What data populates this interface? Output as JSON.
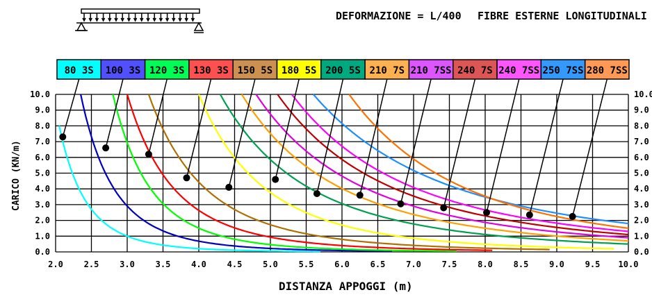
{
  "header": {
    "deformation": "DEFORMAZIONE = L/400",
    "fibers": "FIBRE ESTERNE LONGITUDINALI"
  },
  "chart_data": {
    "type": "line",
    "xlabel": "DISTANZA APPOGGI (m)",
    "ylabel": "CARICO (KN/m)",
    "xlim": [
      2.0,
      10.0
    ],
    "ylim": [
      0.0,
      10.0
    ],
    "x_ticks": [
      "2.0",
      "2.5",
      "3.0",
      "3.5",
      "4.0",
      "4.5",
      "5.0",
      "5.5",
      "6.0",
      "6.5",
      "7.0",
      "7.5",
      "8.0",
      "8.5",
      "9.0",
      "9.5",
      "10.0"
    ],
    "y_ticks": [
      "0.0",
      "1.0",
      "2.0",
      "3.0",
      "4.0",
      "5.0",
      "6.0",
      "7.0",
      "8.0",
      "9.0",
      "10.0"
    ],
    "grid": true,
    "legend_placement": "top",
    "series": [
      {
        "name": "80 3S",
        "color": "#00ffff",
        "exp": 3,
        "points": [
          [
            2.05,
            8.0
          ],
          [
            5.7,
            0.03
          ]
        ],
        "marker": [
          2.1,
          7.3
        ]
      },
      {
        "name": "100 3S",
        "color": "#0000c0",
        "exp": 3,
        "points": [
          [
            2.35,
            10.0
          ],
          [
            6.7,
            0.05
          ]
        ],
        "marker": [
          2.7,
          6.6
        ]
      },
      {
        "name": "120 3S",
        "color": "#00ff00",
        "exp": 3,
        "points": [
          [
            2.8,
            10.0
          ],
          [
            7.6,
            0.05
          ]
        ],
        "marker": [
          3.3,
          6.2
        ]
      },
      {
        "name": "130 3S",
        "color": "#ff0000",
        "exp": 3,
        "points": [
          [
            3.0,
            10.0
          ],
          [
            8.1,
            0.1
          ]
        ],
        "marker": [
          3.83,
          4.7
        ]
      },
      {
        "name": "150 5S",
        "color": "#b07000",
        "exp": 3,
        "points": [
          [
            3.3,
            10.0
          ],
          [
            8.9,
            0.15
          ]
        ],
        "marker": [
          4.42,
          4.1
        ]
      },
      {
        "name": "180 5S",
        "color": "#ffff00",
        "exp": 3,
        "points": [
          [
            4.0,
            10.0
          ],
          [
            9.8,
            0.2
          ]
        ],
        "marker": [
          5.07,
          4.6
        ]
      },
      {
        "name": "200 5S",
        "color": "#00a050",
        "exp": 3,
        "points": [
          [
            4.3,
            10.0
          ],
          [
            10.0,
            0.5
          ]
        ],
        "marker": [
          5.65,
          3.7
        ]
      },
      {
        "name": "210 7S",
        "color": "#ffa000",
        "exp": 3,
        "points": [
          [
            4.6,
            10.0
          ],
          [
            10.0,
            0.7
          ]
        ],
        "marker": [
          6.25,
          3.6
        ]
      },
      {
        "name": "210 7SS",
        "color": "#e000e0",
        "exp": 3,
        "points": [
          [
            4.8,
            10.0
          ],
          [
            10.0,
            0.9
          ]
        ],
        "marker": [
          6.82,
          3.05
        ]
      },
      {
        "name": "240 7S",
        "color": "#c00000",
        "exp": 3,
        "points": [
          [
            5.1,
            10.0
          ],
          [
            10.0,
            1.1
          ]
        ],
        "marker": [
          7.42,
          2.8
        ]
      },
      {
        "name": "240 7SS",
        "color": "#ff00ff",
        "exp": 3,
        "points": [
          [
            5.3,
            10.0
          ],
          [
            10.0,
            1.3
          ]
        ],
        "marker": [
          8.02,
          2.5
        ]
      },
      {
        "name": "250 7SS",
        "color": "#1e8fff",
        "exp": 3,
        "points": [
          [
            5.6,
            10.0
          ],
          [
            10.0,
            1.8
          ]
        ],
        "marker": [
          8.62,
          2.35
        ]
      },
      {
        "name": "280 7SS",
        "color": "#ff7000",
        "exp": 3,
        "points": [
          [
            6.1,
            10.0
          ],
          [
            10.0,
            1.5
          ]
        ],
        "marker": [
          9.22,
          2.25
        ]
      }
    ],
    "legend_colors": [
      "#00ffff",
      "#5050ff",
      "#00ff55",
      "#ff5050",
      "#cc9050",
      "#ffff00",
      "#00aa80",
      "#ffb050",
      "#dd55ff",
      "#dd5555",
      "#ff55ff",
      "#3399ff",
      "#ff9955"
    ]
  }
}
